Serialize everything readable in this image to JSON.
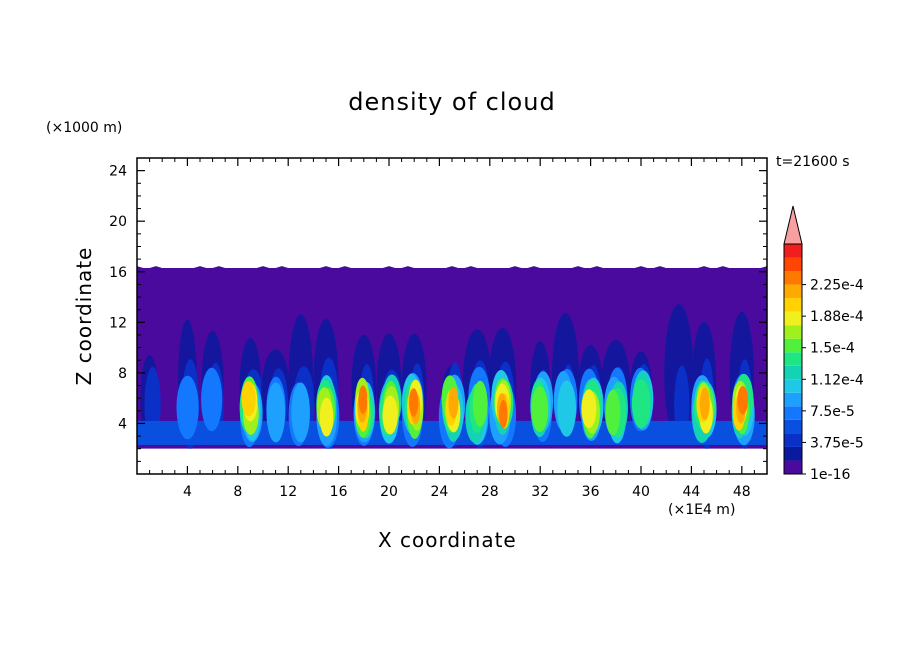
{
  "chart_data": {
    "type": "heatmap",
    "title": "density of cloud",
    "xlabel": "X coordinate",
    "ylabel": "Z coordinate",
    "x_unit": "(×1E4 m)",
    "z_unit": "(×1000 m)",
    "time_label": "t=21600 s",
    "xlim": [
      0,
      50
    ],
    "ylim": [
      0,
      25
    ],
    "x_ticks": [
      "4",
      "8",
      "12",
      "16",
      "20",
      "24",
      "28",
      "32",
      "36",
      "40",
      "44",
      "48"
    ],
    "y_ticks": [
      "4",
      "8",
      "12",
      "16",
      "20",
      "24"
    ],
    "cloud_layer_z": [
      2,
      16.3
    ],
    "colorbar": {
      "levels": [
        "1e-16",
        "3.75e-5",
        "7.5e-5",
        "1.12e-4",
        "1.5e-4",
        "1.88e-4",
        "2.25e-4"
      ],
      "colors": [
        "#4a0a9e",
        "#0a1a9e",
        "#0a30c8",
        "#0a50e0",
        "#1478ff",
        "#1ea0ff",
        "#1ec8e6",
        "#14d2b4",
        "#1ee682",
        "#50f03c",
        "#a0f01e",
        "#f0f01e",
        "#ffd200",
        "#ffaa00",
        "#ff7800",
        "#ff4600",
        "#f01e1e",
        "#f8a0a0"
      ],
      "extend": "max"
    },
    "updraft_columns_x": [
      1,
      4,
      6,
      9,
      11,
      13,
      15,
      18,
      20,
      22,
      25,
      27,
      29,
      32,
      34,
      36,
      38,
      40,
      43,
      45,
      48
    ]
  }
}
